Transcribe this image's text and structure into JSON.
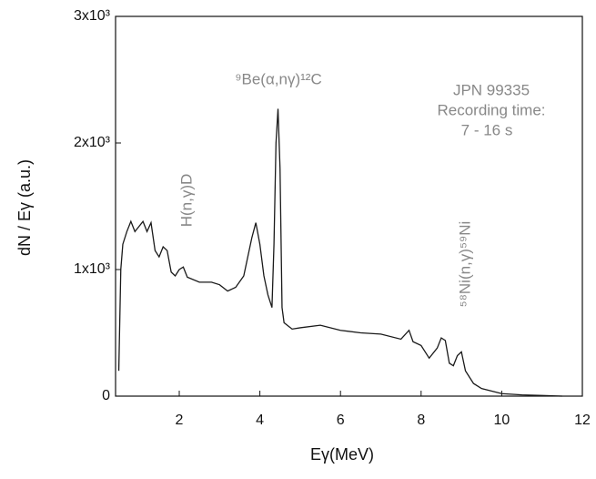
{
  "chart_data": {
    "type": "line",
    "xlabel": "Eγ(MeV)",
    "ylabel": "dN / Eγ (a.u.)",
    "annotations": [
      "⁹Be(α,nγ)¹²C",
      "JPN 99335",
      "Recording time:",
      "7 - 16 s",
      "H(n,γ)D",
      "⁵⁸Ni(n,γ)⁵⁹Ni"
    ],
    "xlim": [
      0.42,
      12
    ],
    "ylim": [
      0,
      3000
    ],
    "xticks": [
      2,
      4,
      6,
      8,
      10,
      12
    ],
    "yticks": [
      0,
      {
        "value": 1000,
        "label": "1x10³"
      },
      {
        "value": 2000,
        "label": "2x10³"
      },
      {
        "value": 3000,
        "label": "3x10³"
      }
    ],
    "series": [
      {
        "color": "#1a1a1a",
        "x": [
          0.5,
          0.55,
          0.6,
          0.7,
          0.8,
          0.9,
          1.0,
          1.1,
          1.2,
          1.3,
          1.4,
          1.5,
          1.6,
          1.7,
          1.8,
          1.9,
          2.0,
          2.1,
          2.2,
          2.5,
          2.8,
          3.0,
          3.2,
          3.4,
          3.6,
          3.8,
          3.9,
          4.0,
          4.1,
          4.2,
          4.3,
          4.35,
          4.4,
          4.45,
          4.5,
          4.55,
          4.6,
          4.8,
          5.0,
          5.5,
          6.0,
          6.5,
          7.0,
          7.5,
          7.7,
          7.8,
          8.0,
          8.2,
          8.4,
          8.5,
          8.6,
          8.7,
          8.8,
          8.9,
          9.0,
          9.1,
          9.3,
          9.5,
          10.0,
          10.5,
          11.0,
          11.5
        ],
        "values": [
          200,
          1000,
          1200,
          1300,
          1380,
          1300,
          1340,
          1380,
          1300,
          1370,
          1150,
          1100,
          1180,
          1150,
          980,
          950,
          1000,
          1020,
          940,
          900,
          900,
          880,
          830,
          860,
          950,
          1250,
          1370,
          1200,
          950,
          800,
          700,
          1200,
          2000,
          2270,
          1800,
          700,
          580,
          530,
          540,
          560,
          520,
          500,
          490,
          450,
          520,
          430,
          400,
          300,
          380,
          460,
          440,
          260,
          240,
          320,
          350,
          200,
          100,
          60,
          20,
          10,
          5,
          0
        ]
      }
    ]
  }
}
